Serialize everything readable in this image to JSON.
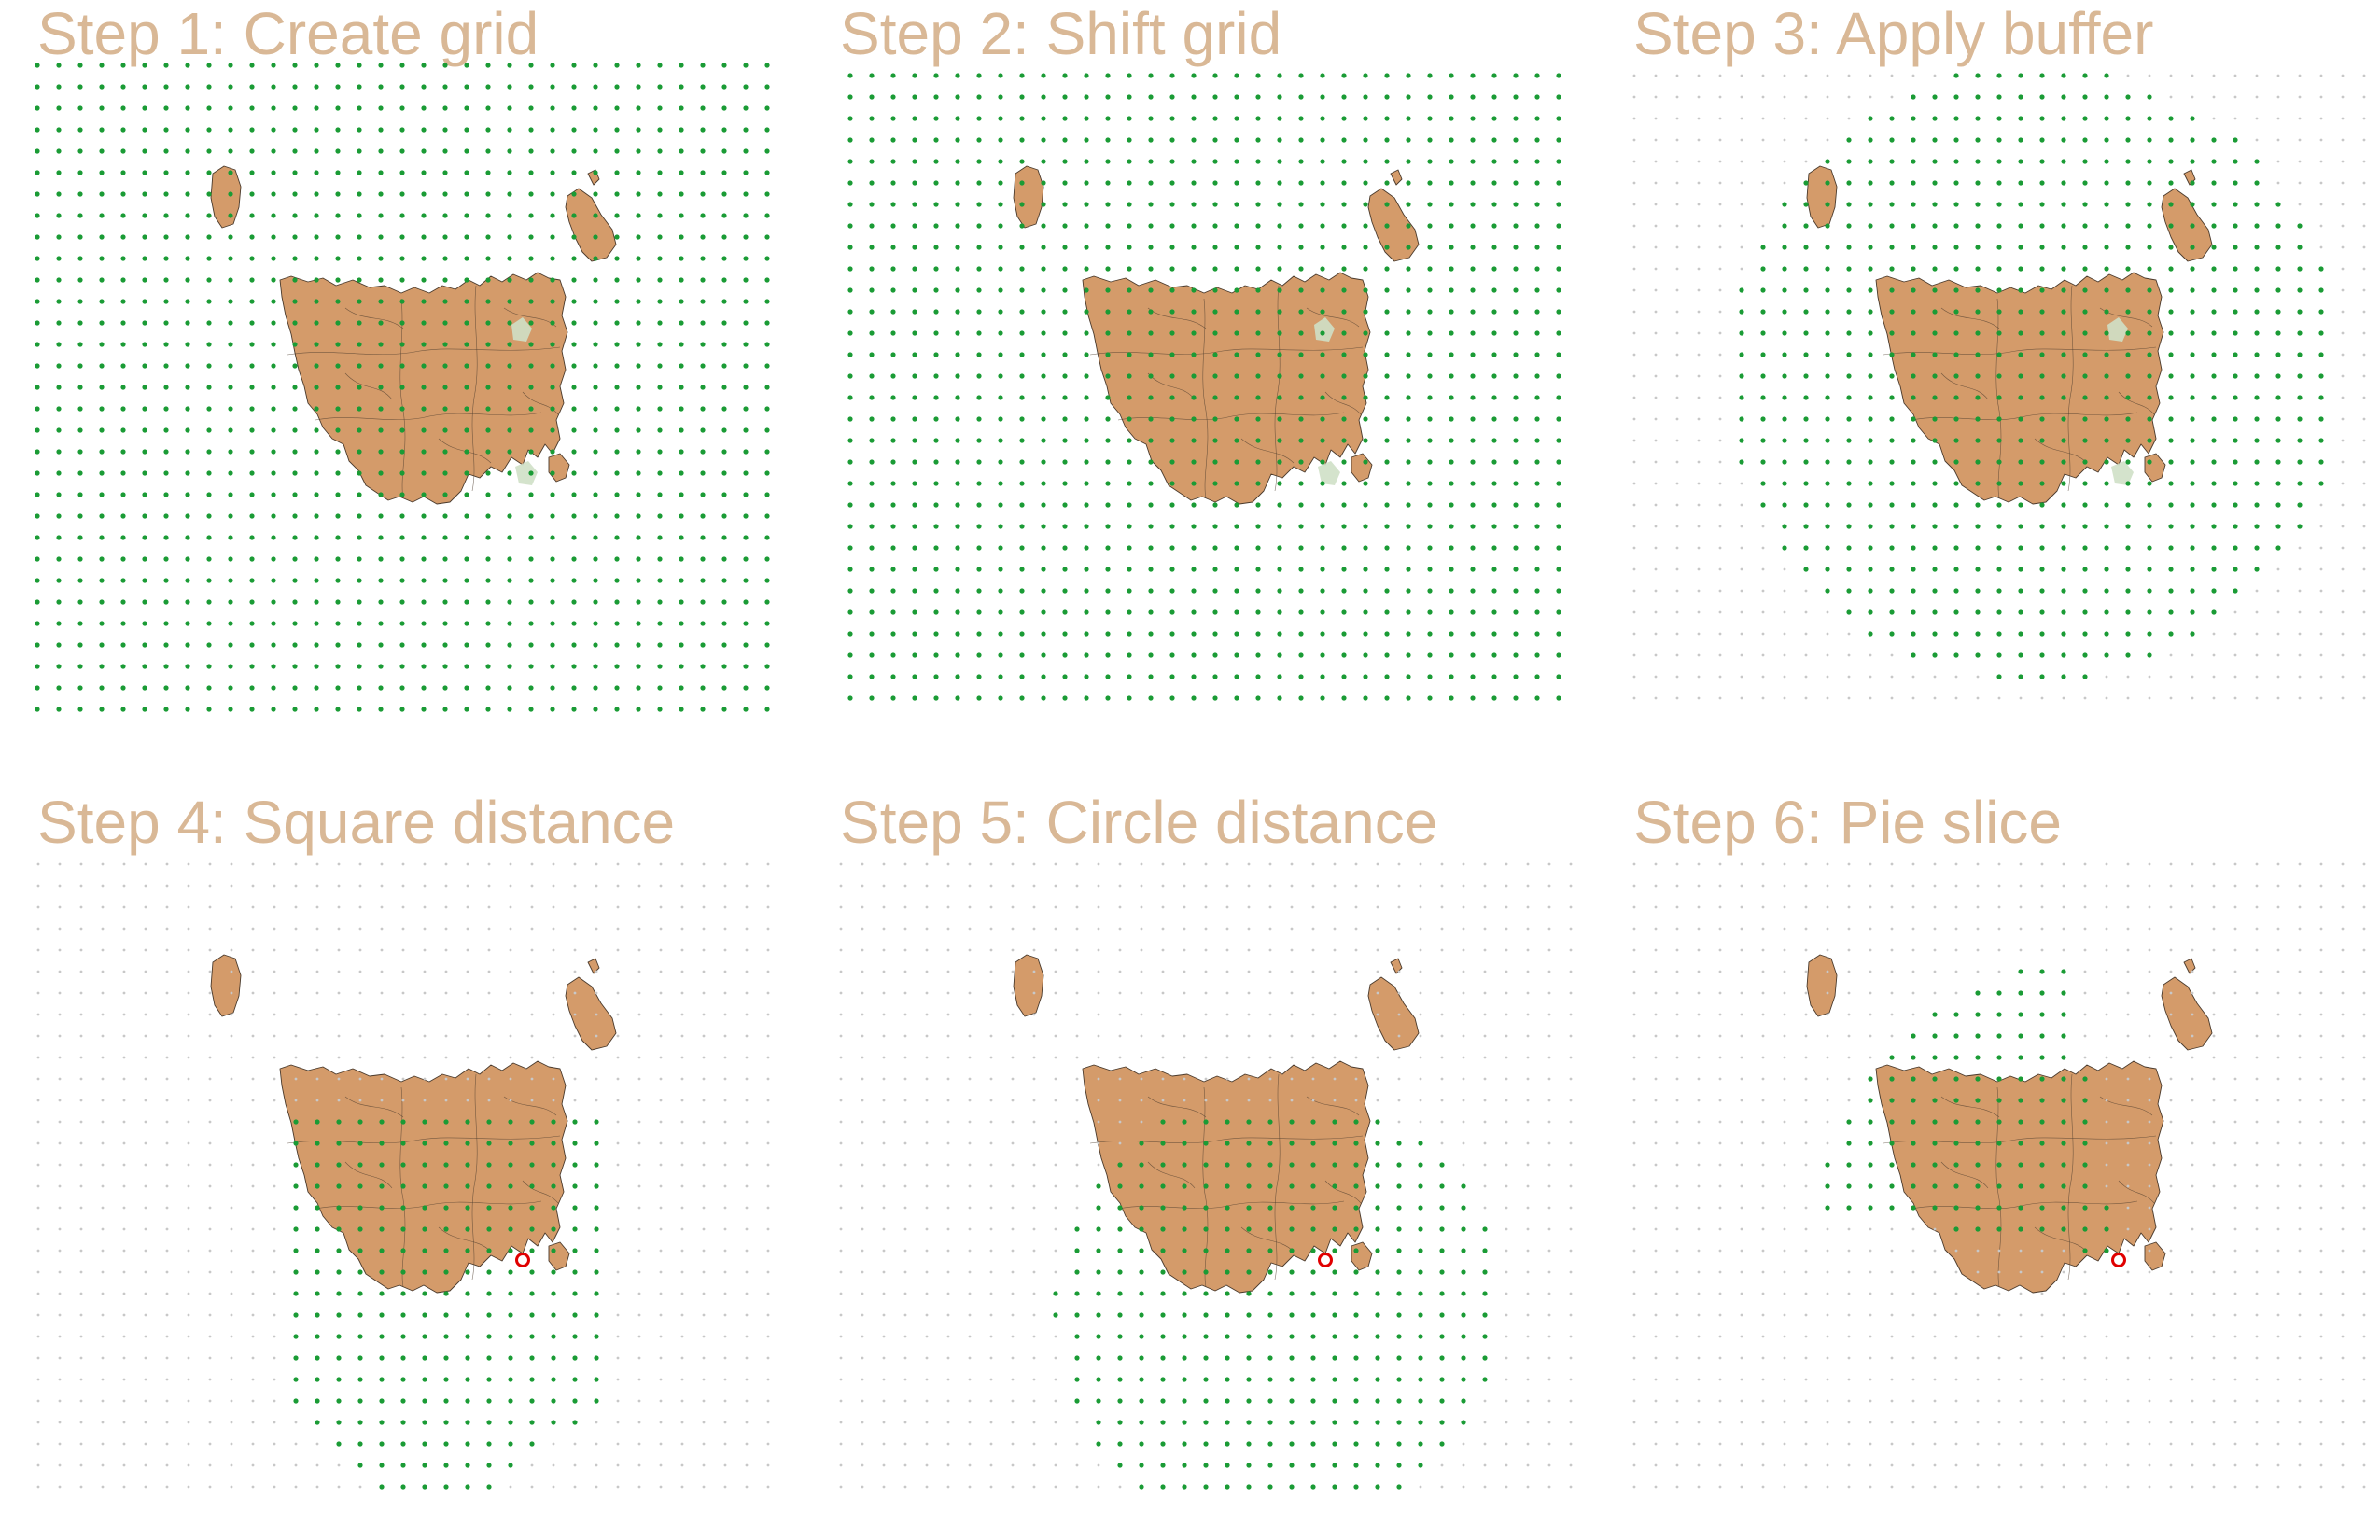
{
  "colors": {
    "title": "#d9b896",
    "land": "#d49b6a",
    "land_outline": "#4a3a2c",
    "urban": "#cfe0c6",
    "grid_point_active": "#1a9b35",
    "grid_point_inactive": "#c8c8c8",
    "location_marker": "#e00000"
  },
  "panels": [
    {
      "id": "step-1",
      "title": "Step 1: Create grid",
      "grid_mode": "full",
      "grid_offset": "none",
      "location_marker": false,
      "urban_areas": true
    },
    {
      "id": "step-2",
      "title": "Step 2: Shift grid",
      "grid_mode": "full",
      "grid_offset": "shifted",
      "location_marker": false,
      "urban_areas": true
    },
    {
      "id": "step-3",
      "title": "Step 3: Apply buffer",
      "grid_mode": "buffer",
      "grid_offset": "shifted",
      "location_marker": false,
      "urban_areas": true
    },
    {
      "id": "step-4",
      "title": "Step 4: Square distance",
      "grid_mode": "square",
      "grid_offset": "shifted",
      "location_marker": true,
      "urban_areas": false
    },
    {
      "id": "step-5",
      "title": "Step 5: Circle distance",
      "grid_mode": "circle",
      "grid_offset": "shifted",
      "location_marker": true,
      "urban_areas": false
    },
    {
      "id": "step-6",
      "title": "Step 6: Pie slice",
      "grid_mode": "pie",
      "grid_offset": "shifted",
      "location_marker": true,
      "urban_areas": false
    }
  ]
}
